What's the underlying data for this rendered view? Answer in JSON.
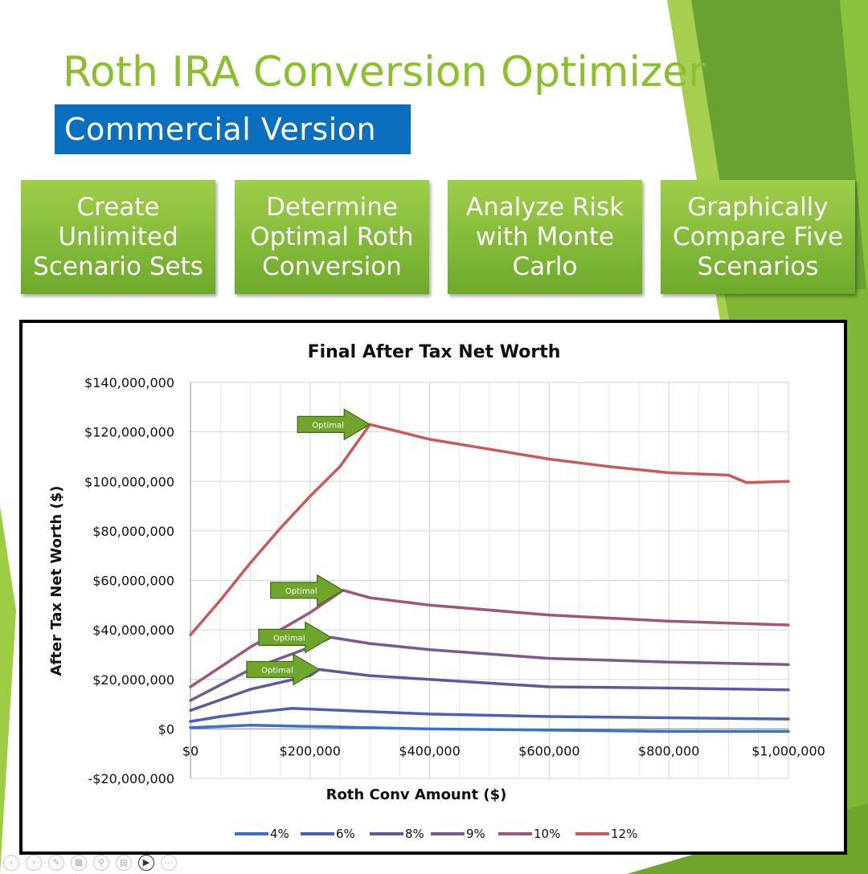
{
  "slide": {
    "title": "Roth IRA Conversion Optimizer",
    "subtitle": "Commercial Version",
    "features": [
      {
        "label": "Create Unlimited Scenario Sets"
      },
      {
        "label": "Determine Optimal Roth Conversion"
      },
      {
        "label": "Analyze Risk with Monte Carlo"
      },
      {
        "label": "Graphically Compare Five Scenarios"
      }
    ]
  },
  "colors": {
    "accent_green": "#8cbf2e",
    "banner_blue": "#0b6fbf",
    "arrow_green": "#6fa52b"
  },
  "toolbar": {
    "icons": [
      "previous-icon",
      "next-icon",
      "pen-icon",
      "slides-icon",
      "zoom-icon",
      "subtitles-icon",
      "camera-icon",
      "more-icon"
    ]
  },
  "chart_data": {
    "type": "line",
    "title": "Final After Tax Net Worth",
    "xlabel": "Roth Conv Amount ($)",
    "ylabel": "After Tax Net Worth ($)",
    "xlim": [
      0,
      1000000
    ],
    "ylim": [
      -20000000,
      140000000
    ],
    "x_ticks": [
      0,
      200000,
      400000,
      600000,
      800000,
      1000000
    ],
    "x_tick_labels": [
      "$0",
      "$200,000",
      "$400,000",
      "$600,000",
      "$800,000",
      "$1,000,000"
    ],
    "y_ticks": [
      -20000000,
      0,
      20000000,
      40000000,
      60000000,
      80000000,
      100000000,
      120000000,
      140000000
    ],
    "y_tick_labels": [
      "-$20,000,000",
      "$0",
      "$20,000,000",
      "$40,000,000",
      "$60,000,000",
      "$80,000,000",
      "$100,000,000",
      "$120,000,000",
      "$140,000,000"
    ],
    "grid": true,
    "legend_position": "bottom",
    "series": [
      {
        "name": "4%",
        "color": "#3a6fd0",
        "x": [
          0,
          100000,
          200000,
          400000,
          600000,
          800000,
          1000000
        ],
        "y": [
          500000,
          1500000,
          1000000,
          0,
          -500000,
          -1000000,
          -1000000
        ]
      },
      {
        "name": "6%",
        "color": "#4a5fb8",
        "x": [
          0,
          50000,
          100000,
          170000,
          250000,
          400000,
          600000,
          800000,
          1000000
        ],
        "y": [
          3000000,
          5000000,
          6500000,
          8300000,
          7500000,
          6000000,
          5000000,
          4500000,
          4000000
        ]
      },
      {
        "name": "8%",
        "color": "#5c5a9c",
        "x": [
          0,
          100000,
          200000,
          215000,
          300000,
          400000,
          600000,
          800000,
          1000000
        ],
        "y": [
          7500000,
          16000000,
          21500000,
          24000000,
          21500000,
          20000000,
          17000000,
          16500000,
          15800000
        ]
      },
      {
        "name": "9%",
        "color": "#7a5a8e",
        "x": [
          0,
          100000,
          200000,
          235000,
          300000,
          400000,
          600000,
          800000,
          1000000
        ],
        "y": [
          11500000,
          24000000,
          33000000,
          37000000,
          34500000,
          32000000,
          28500000,
          27000000,
          26000000
        ]
      },
      {
        "name": "10%",
        "color": "#a0557a",
        "x": [
          0,
          100000,
          200000,
          255000,
          300000,
          400000,
          600000,
          800000,
          1000000
        ],
        "y": [
          17000000,
          33000000,
          47000000,
          56000000,
          53000000,
          50000000,
          46000000,
          43500000,
          42000000
        ]
      },
      {
        "name": "12%",
        "color": "#c85a5a",
        "x": [
          0,
          50000,
          100000,
          150000,
          200000,
          250000,
          300000,
          350000,
          400000,
          500000,
          600000,
          700000,
          800000,
          900000,
          930000,
          1000000
        ],
        "y": [
          38000000,
          52000000,
          67000000,
          81000000,
          94000000,
          106000000,
          123000000,
          120000000,
          117000000,
          113000000,
          109000000,
          106000000,
          103500000,
          102500000,
          99500000,
          100000000
        ]
      }
    ],
    "annotations": [
      {
        "text": "Optimal",
        "x": 300000,
        "y": 123000000
      },
      {
        "text": "Optimal",
        "x": 255000,
        "y": 56000000
      },
      {
        "text": "Optimal",
        "x": 235000,
        "y": 37000000
      },
      {
        "text": "Optimal",
        "x": 215000,
        "y": 24000000
      }
    ]
  }
}
